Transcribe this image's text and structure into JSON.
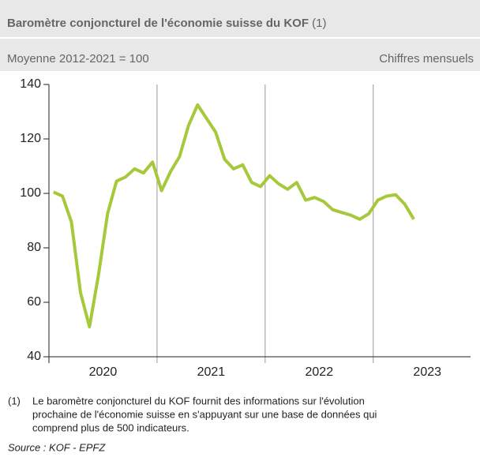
{
  "chart_data": {
    "type": "line",
    "title": "Baromètre conjoncturel de l'économie suisse du KOF",
    "title_note": "(1)",
    "subtitle": "Moyenne 2012-2021 = 100",
    "subtitle_right": "Chiffres mensuels",
    "x": [
      2020.042,
      2020.125,
      2020.208,
      2020.292,
      2020.375,
      2020.458,
      2020.542,
      2020.625,
      2020.708,
      2020.792,
      2020.875,
      2020.958,
      2021.042,
      2021.125,
      2021.208,
      2021.292,
      2021.375,
      2021.458,
      2021.542,
      2021.625,
      2021.708,
      2021.792,
      2021.875,
      2021.958,
      2022.042,
      2022.125,
      2022.208,
      2022.292,
      2022.375,
      2022.458,
      2022.542,
      2022.625,
      2022.708,
      2022.792,
      2022.875,
      2022.958,
      2023.042,
      2023.125,
      2023.208,
      2023.292,
      2023.375
    ],
    "series": [
      {
        "color": "#a5c93b",
        "values": [
          100.5,
          99,
          89.5,
          63.5,
          51,
          70,
          92.5,
          104.5,
          106,
          109,
          107.5,
          111.5,
          101,
          108,
          113.5,
          125,
          132.5,
          127.5,
          122.5,
          112.5,
          109,
          110.5,
          104,
          102.5,
          106.5,
          103.5,
          101.5,
          104,
          97.5,
          98.5,
          97,
          94,
          93,
          92,
          90.5,
          92.5,
          97.5,
          99,
          99.5,
          96,
          90.5
        ]
      }
    ],
    "xlim": [
      2020,
      2023.9
    ],
    "xticks": [
      {
        "value": 2020.5,
        "label": "2020"
      },
      {
        "value": 2021.5,
        "label": "2021"
      },
      {
        "value": 2022.5,
        "label": "2022"
      },
      {
        "value": 2023.5,
        "label": "2023"
      }
    ],
    "xgrid": [
      2021,
      2022,
      2023
    ],
    "ylim": [
      40,
      140
    ],
    "yticks": [
      40,
      60,
      80,
      100,
      120,
      140
    ],
    "footnote_marker": "(1)",
    "footnote": [
      "Le baromètre conjoncturel du KOF fournit des informations sur l'évolution",
      "prochaine de l'économie suisse en s'appuyant sur une base de données qui",
      "comprend plus de 500 indicateurs."
    ],
    "source": "Source : KOF - EPFZ"
  }
}
